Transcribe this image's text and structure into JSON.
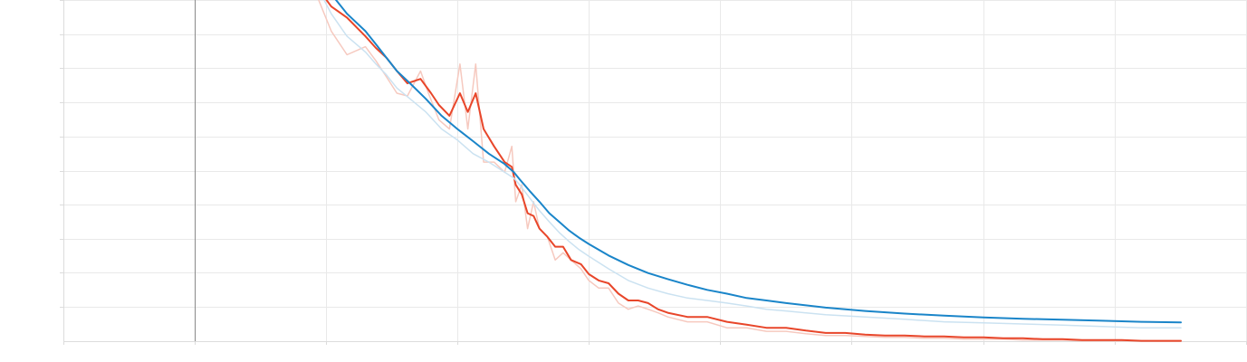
{
  "chart_data": {
    "type": "line",
    "title": "",
    "xlabel": "",
    "ylabel": "",
    "grid": true,
    "legend": "none",
    "colors": {
      "series_1_smoothed": "#e8462a",
      "series_1_raw": "#f6c9bf",
      "series_2_smoothed": "#1a85c9",
      "series_2_raw": "#cbe2f1",
      "gridline": "#e9e9e9",
      "axis": "#dcdcdc",
      "marker": "#8a8a8a"
    },
    "marker_x": 0,
    "series": [
      {
        "style": "raw",
        "color_key": "series_1_raw",
        "points": [
          [
            2.35,
            1.02
          ],
          [
            2.6,
            0.6
          ],
          [
            2.9,
            0.4
          ],
          [
            3.25,
            0.46
          ],
          [
            3.45,
            0.36
          ],
          [
            3.65,
            0.27
          ],
          [
            3.85,
            0.2
          ],
          [
            4.05,
            0.19
          ],
          [
            4.3,
            0.3
          ],
          [
            4.45,
            0.2
          ],
          [
            4.65,
            0.12
          ],
          [
            4.85,
            0.1
          ],
          [
            5.05,
            0.34
          ],
          [
            5.2,
            0.1
          ],
          [
            5.35,
            0.34
          ],
          [
            5.5,
            0.05
          ],
          [
            5.7,
            0.05
          ],
          [
            5.9,
            0.04
          ],
          [
            6.1,
            0.07
          ],
          [
            6.3,
            0.02
          ],
          [
            6.6,
            0.03
          ],
          [
            6.9,
            0.01
          ],
          [
            7.2,
            0.02
          ],
          [
            7.5,
            0.01
          ],
          [
            7.9,
            0.008
          ],
          [
            8.3,
            0.004
          ],
          [
            8.7,
            0.005
          ],
          [
            9.1,
            0.004
          ],
          [
            9.6,
            0.003
          ],
          [
            10,
            0.002
          ],
          [
            10.5,
            0.0015
          ],
          [
            11,
            0.0015
          ],
          [
            11.5,
            0.0008
          ],
          [
            12,
            0.0006
          ],
          [
            12.5,
            0.0007
          ],
          [
            13,
            0.0006
          ],
          [
            13.5,
            0.0005
          ],
          [
            14,
            0.0004
          ],
          [
            15,
            0.0003
          ],
          [
            16,
            0.0003
          ],
          [
            17,
            0.0002
          ],
          [
            18,
            0.0002
          ],
          [
            19,
            0.00015
          ],
          [
            20,
            0.00015
          ],
          [
            21,
            0.00012
          ],
          [
            22,
            0.0001
          ],
          [
            23,
            0.0001
          ],
          [
            24,
            9e-05
          ],
          [
            25,
            8e-05
          ],
          [
            26,
            8e-05
          ],
          [
            27,
            7e-05
          ],
          [
            28,
            7e-05
          ],
          [
            29,
            6e-05
          ],
          [
            30,
            6e-05
          ],
          [
            31,
            6e-05
          ],
          [
            32,
            5e-05
          ],
          [
            33,
            5e-05
          ],
          [
            34,
            5e-05
          ],
          [
            35,
            4e-05
          ],
          [
            36,
            4e-05
          ],
          [
            37,
            4e-05
          ],
          [
            38,
            4e-05
          ],
          [
            39,
            3e-05
          ],
          [
            40,
            3e-05
          ]
        ]
      },
      {
        "style": "smoothed",
        "color_key": "series_1_smoothed",
        "points": [
          [
            2.35,
            1.2
          ],
          [
            2.6,
            0.9
          ],
          [
            2.9,
            0.75
          ],
          [
            3.25,
            0.55
          ],
          [
            3.45,
            0.45
          ],
          [
            3.65,
            0.38
          ],
          [
            3.85,
            0.3
          ],
          [
            4.05,
            0.24
          ],
          [
            4.3,
            0.26
          ],
          [
            4.5,
            0.2
          ],
          [
            4.65,
            0.16
          ],
          [
            4.85,
            0.13
          ],
          [
            5.05,
            0.2
          ],
          [
            5.2,
            0.14
          ],
          [
            5.35,
            0.2
          ],
          [
            5.5,
            0.1
          ],
          [
            5.7,
            0.07
          ],
          [
            5.9,
            0.05
          ],
          [
            6.1,
            0.045
          ],
          [
            6.3,
            0.03
          ],
          [
            6.6,
            0.024
          ],
          [
            6.9,
            0.015
          ],
          [
            7.2,
            0.014
          ],
          [
            7.5,
            0.01
          ],
          [
            7.9,
            0.008
          ],
          [
            8.3,
            0.006
          ],
          [
            8.7,
            0.006
          ],
          [
            9.1,
            0.004
          ],
          [
            9.6,
            0.0035
          ],
          [
            10,
            0.0025
          ],
          [
            10.5,
            0.002
          ],
          [
            11,
            0.0018
          ],
          [
            11.5,
            0.0012
          ],
          [
            12,
            0.0009
          ],
          [
            12.5,
            0.0009
          ],
          [
            13,
            0.0008
          ],
          [
            13.5,
            0.0006
          ],
          [
            14,
            0.0005
          ],
          [
            15,
            0.0004
          ],
          [
            16,
            0.0004
          ],
          [
            17,
            0.0003
          ],
          [
            18,
            0.00025
          ],
          [
            19,
            0.0002
          ],
          [
            20,
            0.0002
          ],
          [
            21,
            0.00016
          ],
          [
            22,
            0.00013
          ],
          [
            23,
            0.00013
          ],
          [
            24,
            0.00011
          ],
          [
            25,
            0.0001
          ],
          [
            26,
            0.0001
          ],
          [
            27,
            9e-05
          ],
          [
            28,
            9e-05
          ],
          [
            29,
            8e-05
          ],
          [
            30,
            8e-05
          ],
          [
            31,
            7e-05
          ],
          [
            32,
            7e-05
          ],
          [
            33,
            6e-05
          ],
          [
            34,
            6e-05
          ],
          [
            35,
            5e-05
          ],
          [
            36,
            5e-05
          ],
          [
            37,
            5e-05
          ],
          [
            38,
            4e-05
          ],
          [
            39,
            4e-05
          ],
          [
            40,
            4e-05
          ]
        ]
      },
      {
        "style": "raw",
        "color_key": "series_2_raw",
        "points": [
          [
            2.35,
            1.2
          ],
          [
            2.6,
            0.8
          ],
          [
            2.9,
            0.55
          ],
          [
            3.25,
            0.42
          ],
          [
            3.45,
            0.34
          ],
          [
            3.65,
            0.28
          ],
          [
            3.85,
            0.22
          ],
          [
            4.1,
            0.18
          ],
          [
            4.4,
            0.14
          ],
          [
            4.7,
            0.1
          ],
          [
            5.0,
            0.08
          ],
          [
            5.3,
            0.06
          ],
          [
            5.6,
            0.05
          ],
          [
            5.9,
            0.04
          ],
          [
            6.2,
            0.035
          ],
          [
            6.5,
            0.03
          ],
          [
            7.0,
            0.022
          ],
          [
            7.5,
            0.016
          ],
          [
            8.0,
            0.012
          ],
          [
            8.5,
            0.009
          ],
          [
            9.0,
            0.007
          ],
          [
            9.5,
            0.0055
          ],
          [
            10,
            0.0045
          ],
          [
            11,
            0.003
          ],
          [
            12,
            0.002
          ],
          [
            13,
            0.0015
          ],
          [
            14,
            0.0012
          ],
          [
            15,
            0.001
          ],
          [
            16,
            0.0009
          ],
          [
            17,
            0.0008
          ],
          [
            18,
            0.0007
          ],
          [
            19,
            0.0006
          ],
          [
            20,
            0.00055
          ],
          [
            22,
            0.00045
          ],
          [
            24,
            0.0004
          ],
          [
            26,
            0.00035
          ],
          [
            28,
            0.0003
          ],
          [
            30,
            0.00028
          ],
          [
            32,
            0.00026
          ],
          [
            34,
            0.00024
          ],
          [
            36,
            0.00022
          ],
          [
            38,
            0.0002
          ],
          [
            40,
            0.0002
          ]
        ]
      },
      {
        "style": "smoothed",
        "color_key": "series_2_smoothed",
        "points": [
          [
            2.35,
            1.5
          ],
          [
            2.6,
            1.1
          ],
          [
            2.9,
            0.8
          ],
          [
            3.25,
            0.6
          ],
          [
            3.45,
            0.48
          ],
          [
            3.65,
            0.38
          ],
          [
            3.85,
            0.3
          ],
          [
            4.1,
            0.24
          ],
          [
            4.4,
            0.18
          ],
          [
            4.7,
            0.13
          ],
          [
            5.0,
            0.1
          ],
          [
            5.3,
            0.078
          ],
          [
            5.6,
            0.06
          ],
          [
            5.9,
            0.048
          ],
          [
            6.2,
            0.04
          ],
          [
            6.5,
            0.034
          ],
          [
            7.0,
            0.026
          ],
          [
            7.5,
            0.02
          ],
          [
            8.0,
            0.015
          ],
          [
            8.5,
            0.012
          ],
          [
            9.0,
            0.0095
          ],
          [
            9.5,
            0.0078
          ],
          [
            10,
            0.0065
          ],
          [
            11,
            0.0046
          ],
          [
            12,
            0.0034
          ],
          [
            13,
            0.0026
          ],
          [
            14,
            0.0021
          ],
          [
            15,
            0.0017
          ],
          [
            16,
            0.0014
          ],
          [
            17,
            0.0012
          ],
          [
            18,
            0.001
          ],
          [
            19,
            0.0009
          ],
          [
            20,
            0.0008
          ],
          [
            22,
            0.00065
          ],
          [
            24,
            0.00055
          ],
          [
            26,
            0.00048
          ],
          [
            28,
            0.00043
          ],
          [
            30,
            0.00039
          ],
          [
            32,
            0.00036
          ],
          [
            34,
            0.00034
          ],
          [
            36,
            0.00032
          ],
          [
            38,
            0.0003
          ],
          [
            40,
            0.00029
          ]
        ]
      }
    ]
  }
}
